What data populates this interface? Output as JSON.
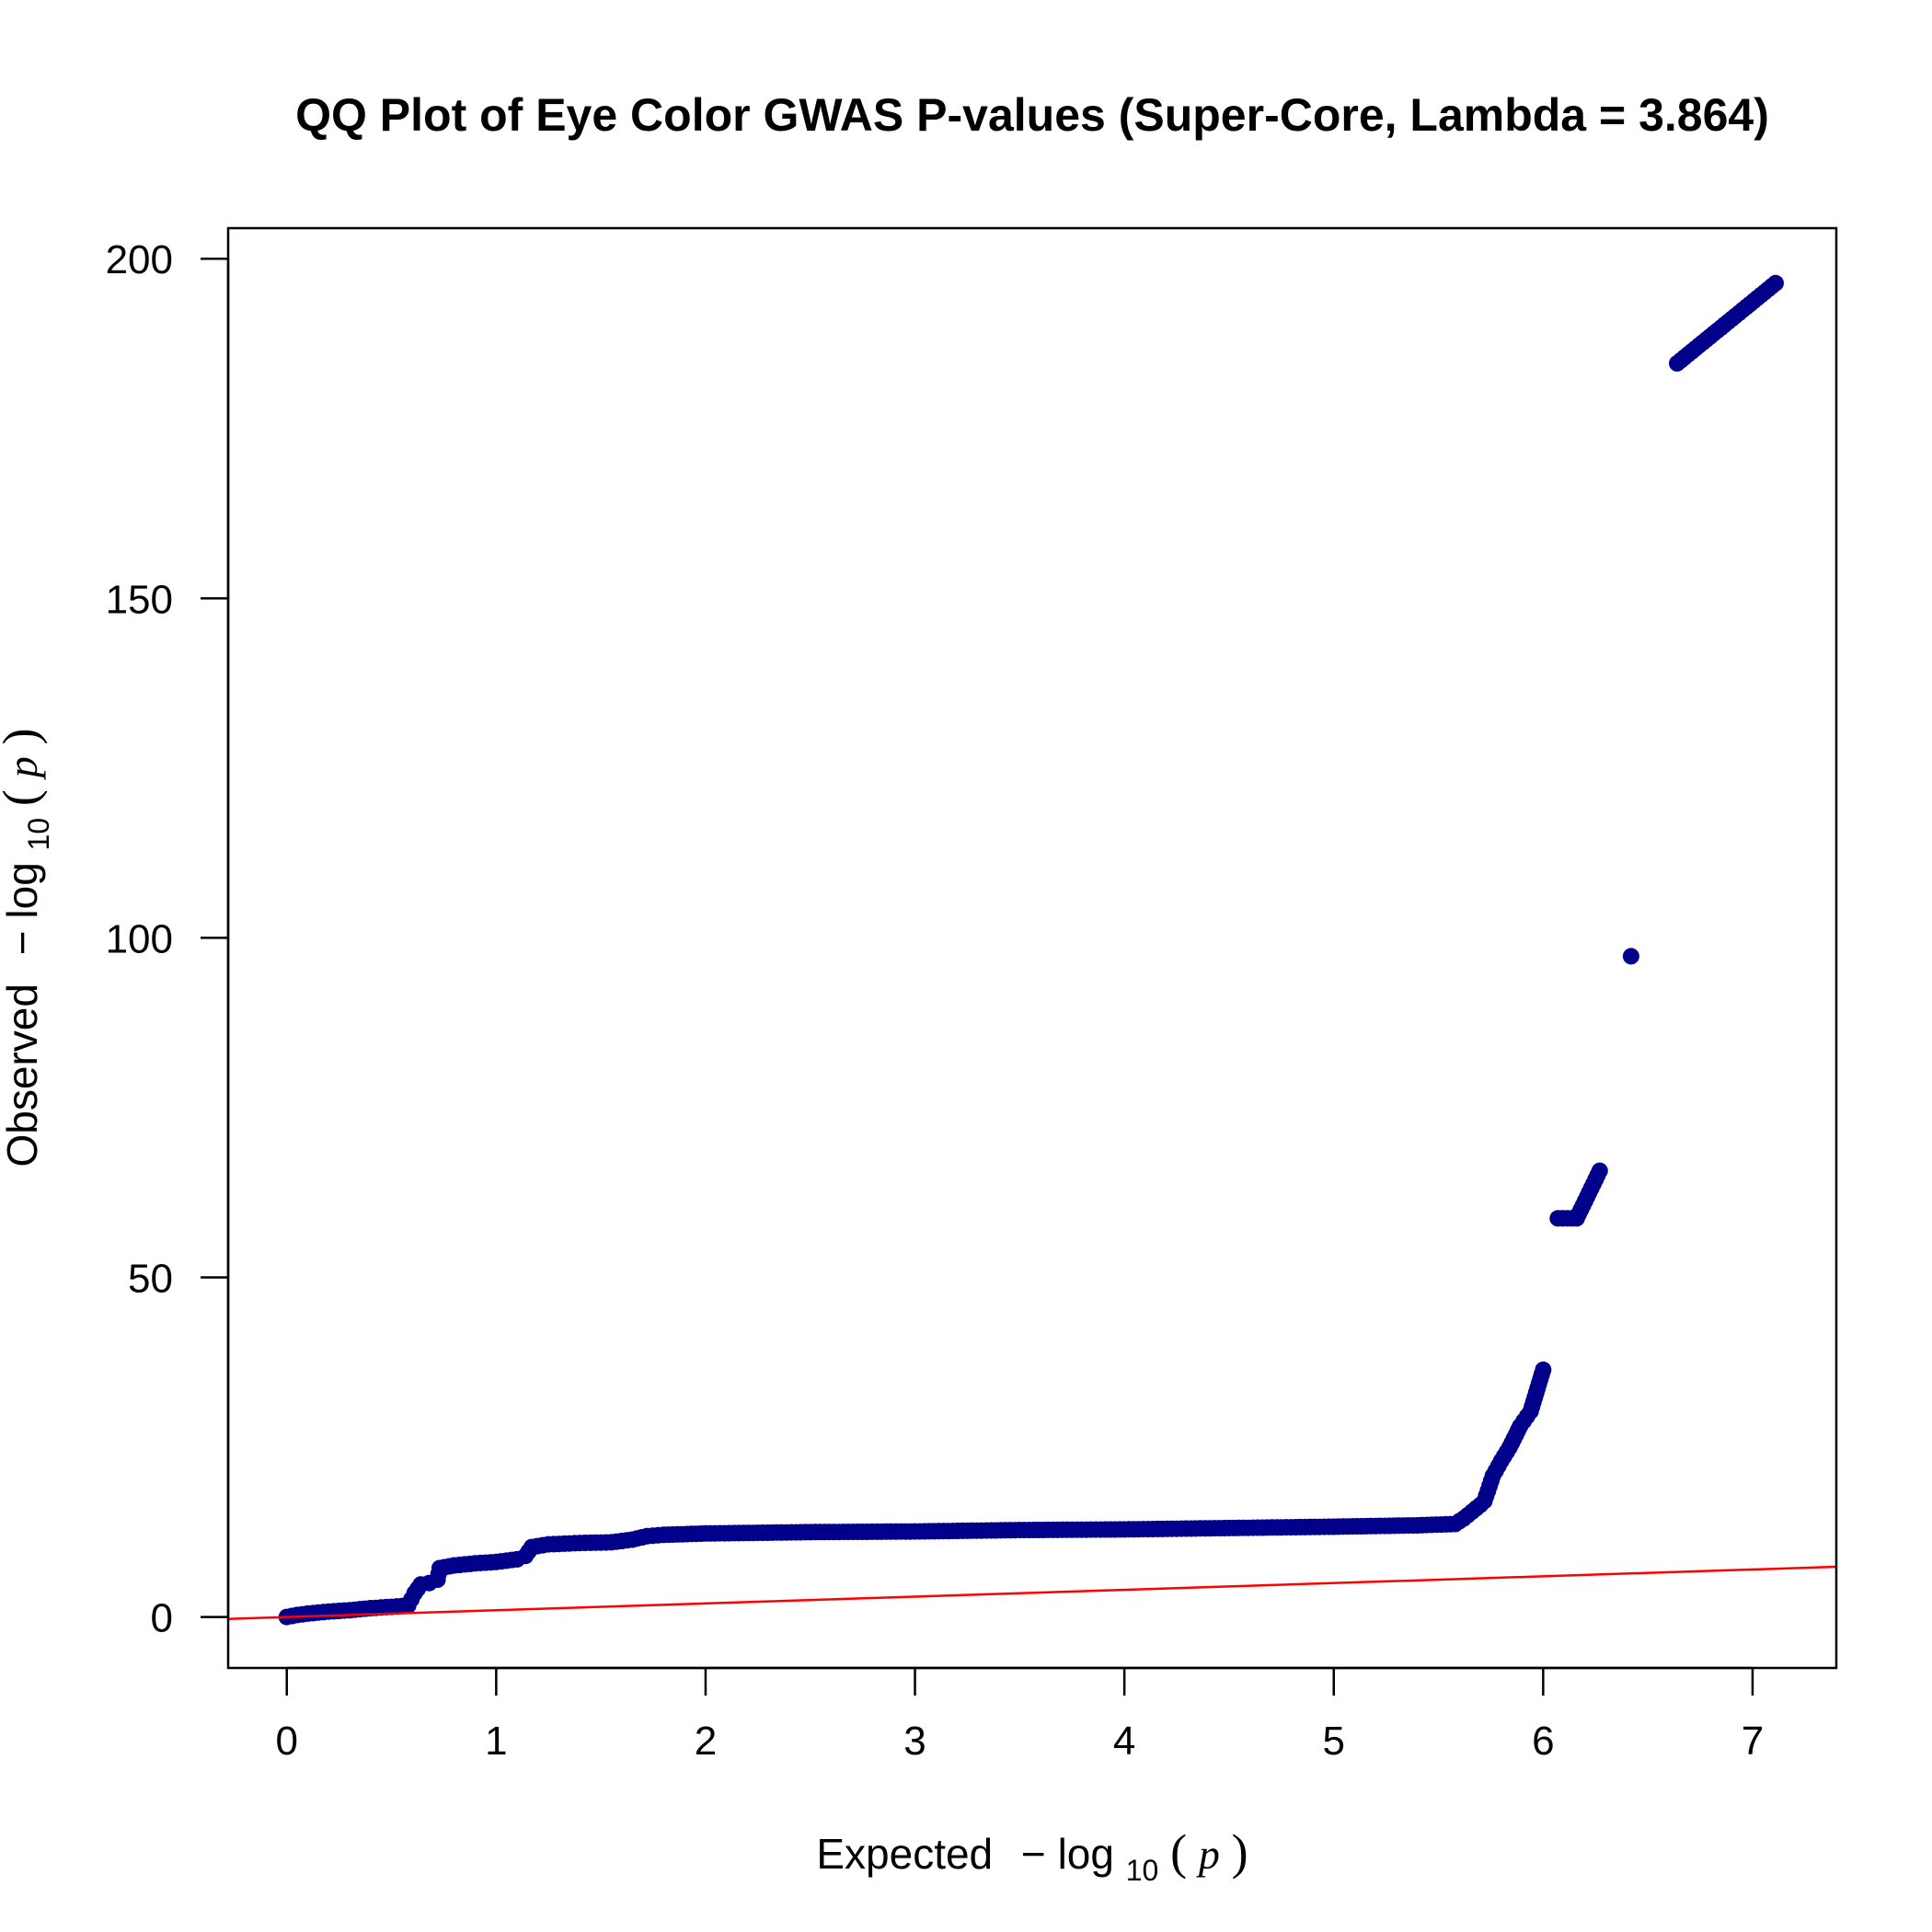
{
  "chart_data": {
    "type": "scatter",
    "title": "QQ Plot of Eye Color GWAS P-values (Super-Core, Lambda = 3.864)",
    "xlabel": {
      "word": "Expected",
      "minus": "−",
      "log": "log",
      "sub": "10",
      "open": "(",
      "var": "p",
      "close": ")"
    },
    "ylabel": {
      "word": "Observed",
      "minus": "−",
      "log": "log",
      "sub": "10",
      "open": "(",
      "var": "p",
      "close": ")"
    },
    "xlim": [
      -0.28,
      7.4
    ],
    "ylim": [
      -7.5,
      204.5
    ],
    "xticks": [
      "0",
      "1",
      "2",
      "3",
      "4",
      "5",
      "6",
      "7"
    ],
    "yticks": [
      "0",
      "50",
      "100",
      "150",
      "200"
    ],
    "grid": false,
    "point_color": "#00008B",
    "line_color": "#FF0000",
    "reference_line": {
      "intercept": 0,
      "slope": 1
    },
    "points": [
      [
        0,
        0
      ],
      [
        0.05,
        0.3
      ],
      [
        0.1,
        0.5
      ],
      [
        0.2,
        0.8
      ],
      [
        0.3,
        1.0
      ],
      [
        0.4,
        1.3
      ],
      [
        0.5,
        1.5
      ],
      [
        0.58,
        1.7
      ],
      [
        0.61,
        3.5
      ],
      [
        0.64,
        4.8
      ],
      [
        0.68,
        5.0
      ],
      [
        0.72,
        5.5
      ],
      [
        0.73,
        7.2
      ],
      [
        0.8,
        7.6
      ],
      [
        0.9,
        7.9
      ],
      [
        1.0,
        8.1
      ],
      [
        1.1,
        8.5
      ],
      [
        1.14,
        9.0
      ],
      [
        1.17,
        10.3
      ],
      [
        1.25,
        10.7
      ],
      [
        1.4,
        10.9
      ],
      [
        1.55,
        11.0
      ],
      [
        1.65,
        11.4
      ],
      [
        1.72,
        11.9
      ],
      [
        1.8,
        12.1
      ],
      [
        2.0,
        12.3
      ],
      [
        2.5,
        12.5
      ],
      [
        3.0,
        12.6
      ],
      [
        3.5,
        12.8
      ],
      [
        4.0,
        12.9
      ],
      [
        4.5,
        13.1
      ],
      [
        5.0,
        13.3
      ],
      [
        5.4,
        13.5
      ],
      [
        5.58,
        13.7
      ],
      [
        5.62,
        14.5
      ],
      [
        5.66,
        15.5
      ],
      [
        5.7,
        16.5
      ],
      [
        5.72,
        17.1
      ],
      [
        5.76,
        20.8
      ],
      [
        5.8,
        23.0
      ],
      [
        5.84,
        25.0
      ],
      [
        5.89,
        28.1
      ],
      [
        5.94,
        30.3
      ],
      [
        6.0,
        36.4
      ],
      [
        6.07,
        58.7
      ],
      [
        6.16,
        58.7
      ],
      [
        6.27,
        65.7
      ],
      [
        6.42,
        97.3
      ],
      [
        6.64,
        184.6
      ],
      [
        7.11,
        196.4
      ]
    ]
  }
}
